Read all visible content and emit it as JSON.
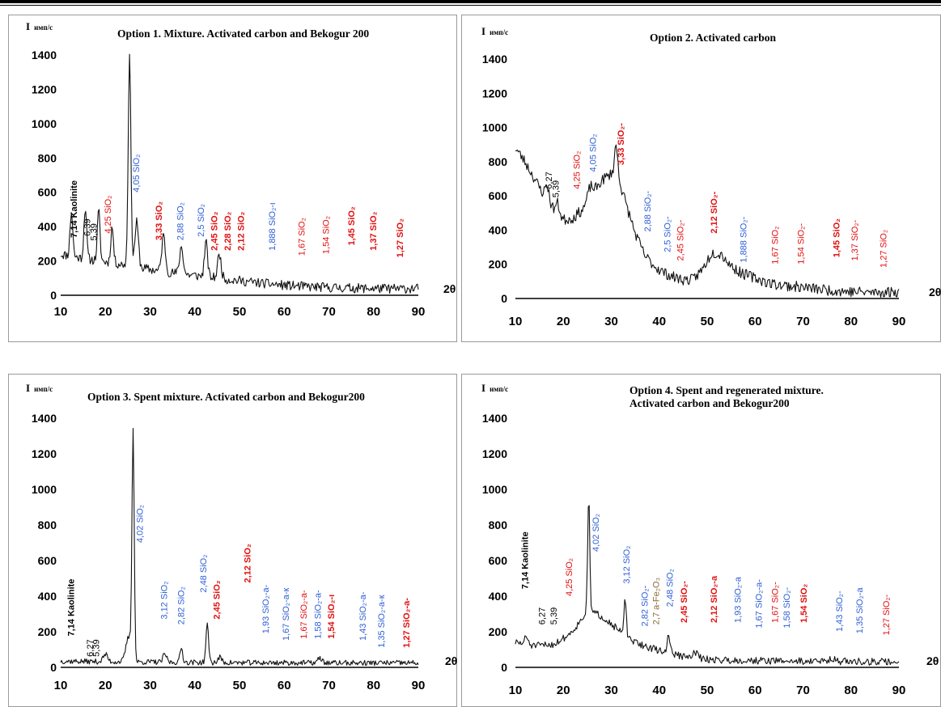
{
  "chart_data": [
    {
      "type": "line",
      "title": "Option 1. Mixture. Activated carbon and Bekogur 200",
      "ylabel": "I",
      "ylabel_sub": "имп/с",
      "xlabel": "2θ",
      "xlim": [
        10,
        90
      ],
      "ylim": [
        0,
        1400
      ],
      "x_ticks": [
        "10",
        "20",
        "30",
        "40",
        "50",
        "60",
        "70",
        "80",
        "90"
      ],
      "y_ticks": [
        "0",
        "200",
        "400",
        "600",
        "800",
        "1000",
        "1200",
        "1400"
      ],
      "base_curve": [
        [
          10,
          240
        ],
        [
          15,
          215
        ],
        [
          20,
          195
        ],
        [
          25,
          175
        ],
        [
          30,
          150
        ],
        [
          35,
          130
        ],
        [
          40,
          115
        ],
        [
          45,
          100
        ],
        [
          50,
          85
        ],
        [
          55,
          70
        ],
        [
          60,
          58
        ],
        [
          65,
          50
        ],
        [
          70,
          45
        ],
        [
          75,
          42
        ],
        [
          80,
          40
        ],
        [
          85,
          38
        ],
        [
          90,
          40
        ]
      ],
      "peaks": [
        [
          12.4,
          260,
          0.3
        ],
        [
          15.5,
          300,
          0.3
        ],
        [
          18.5,
          290,
          0.3
        ],
        [
          21.5,
          210,
          0.3
        ],
        [
          25.4,
          1220,
          0.3
        ],
        [
          27,
          260,
          0.4
        ],
        [
          33,
          210,
          0.4
        ],
        [
          37,
          160,
          0.4
        ],
        [
          42.5,
          200,
          0.35
        ],
        [
          45.5,
          140,
          0.4
        ]
      ],
      "noise": 28,
      "annotations": [
        {
          "text": "7,14 Kaolinite",
          "x": 13.6,
          "y": 335,
          "color": "#000000",
          "bold": true
        },
        {
          "text": "6,39",
          "x": 16.6,
          "y": 345,
          "color": "#000000",
          "bold": false
        },
        {
          "text": "5,39",
          "x": 18.1,
          "y": 318,
          "color": "#000000",
          "bold": false
        },
        {
          "text": "4,25 SiO₂",
          "x": 21.2,
          "y": 360,
          "color": "#e01010",
          "bold": false
        },
        {
          "text": "4,05 SiO₂",
          "x": 27.6,
          "y": 600,
          "color": "#2f5fd6",
          "bold": false
        },
        {
          "text": "3,33 SiO₂",
          "x": 32.6,
          "y": 320,
          "color": "#e01010",
          "bold": true
        },
        {
          "text": "2,88 SiO₂",
          "x": 37.4,
          "y": 320,
          "color": "#2f5fd6",
          "bold": false
        },
        {
          "text": "2,5 SiO₂",
          "x": 42.0,
          "y": 340,
          "color": "#2f5fd6",
          "bold": false
        },
        {
          "text": "2,45 SiO₂",
          "x": 45.0,
          "y": 260,
          "color": "#e01010",
          "bold": true
        },
        {
          "text": "2,28 SiO₂",
          "x": 48.0,
          "y": 260,
          "color": "#e01010",
          "bold": true
        },
        {
          "text": "2,12 SiO₂",
          "x": 51.0,
          "y": 260,
          "color": "#e01010",
          "bold": true
        },
        {
          "text": "1,888 SiO₂-ι",
          "x": 58.0,
          "y": 260,
          "color": "#2f5fd6",
          "bold": false
        },
        {
          "text": "1,67 SiO₂",
          "x": 64.6,
          "y": 230,
          "color": "#e01010",
          "bold": false
        },
        {
          "text": "1,54 SiO₂",
          "x": 70.0,
          "y": 240,
          "color": "#e01010",
          "bold": false
        },
        {
          "text": "1,45 SiO₂",
          "x": 75.7,
          "y": 290,
          "color": "#e01010",
          "bold": true
        },
        {
          "text": "1,37 SiO₂",
          "x": 80.6,
          "y": 260,
          "color": "#e01010",
          "bold": true
        },
        {
          "text": "1,27 SiO₂",
          "x": 86.6,
          "y": 220,
          "color": "#e01010",
          "bold": true
        }
      ]
    },
    {
      "type": "line",
      "title": "Option 2. Activated carbon",
      "ylabel": "I",
      "ylabel_sub": "имп/с",
      "xlabel": "2θ",
      "xlim": [
        10,
        90
      ],
      "ylim": [
        0,
        1400
      ],
      "x_ticks": [
        "10",
        "20",
        "30",
        "40",
        "50",
        "60",
        "70",
        "80",
        "90"
      ],
      "y_ticks": [
        "0",
        "200",
        "400",
        "600",
        "800",
        "1000",
        "1200",
        "1400"
      ],
      "base_curve": [
        [
          10,
          880
        ],
        [
          12,
          800
        ],
        [
          14,
          700
        ],
        [
          16,
          600
        ],
        [
          18,
          520
        ],
        [
          20,
          460
        ],
        [
          22,
          470
        ],
        [
          24,
          520
        ],
        [
          26,
          610
        ],
        [
          28,
          690
        ],
        [
          30,
          730
        ],
        [
          31.5,
          700
        ],
        [
          33,
          560
        ],
        [
          35,
          380
        ],
        [
          37,
          250
        ],
        [
          39,
          190
        ],
        [
          41,
          150
        ],
        [
          43,
          125
        ],
        [
          45,
          110
        ],
        [
          47,
          110
        ],
        [
          49,
          170
        ],
        [
          51,
          270
        ],
        [
          53,
          260
        ],
        [
          55,
          190
        ],
        [
          57,
          150
        ],
        [
          59,
          130
        ],
        [
          61,
          110
        ],
        [
          63,
          90
        ],
        [
          65,
          80
        ],
        [
          70,
          65
        ],
        [
          75,
          50
        ],
        [
          80,
          40
        ],
        [
          85,
          35
        ],
        [
          90,
          40
        ]
      ],
      "peaks": [
        [
          16.6,
          90,
          0.4
        ],
        [
          18.8,
          60,
          0.4
        ],
        [
          25.6,
          60,
          0.5
        ],
        [
          31.0,
          180,
          0.35
        ]
      ],
      "noise": 32,
      "annotations": [
        {
          "text": "6,27",
          "x": 17.6,
          "y": 640,
          "color": "#000000",
          "bold": false
        },
        {
          "text": "5,39",
          "x": 19.0,
          "y": 590,
          "color": "#000000",
          "bold": false
        },
        {
          "text": "4,25 SiO₂",
          "x": 23.4,
          "y": 640,
          "color": "#e01010",
          "bold": false
        },
        {
          "text": "4,05 SiO₂",
          "x": 26.8,
          "y": 740,
          "color": "#2f5fd6",
          "bold": false
        },
        {
          "text": "3,33 SiO₂-",
          "x": 32.6,
          "y": 780,
          "color": "#e01010",
          "bold": true
        },
        {
          "text": "2,88 SiO₂-",
          "x": 38.2,
          "y": 390,
          "color": "#2f5fd6",
          "bold": false
        },
        {
          "text": "2,5 SiO₂-",
          "x": 42.3,
          "y": 270,
          "color": "#2f5fd6",
          "bold": false
        },
        {
          "text": "2,45 SiO₂-",
          "x": 45.0,
          "y": 220,
          "color": "#e01010",
          "bold": false
        },
        {
          "text": "2,12 SiO₂-",
          "x": 52.0,
          "y": 380,
          "color": "#e01010",
          "bold": true
        },
        {
          "text": "1,888 SiO₂-",
          "x": 58.2,
          "y": 210,
          "color": "#2f5fd6",
          "bold": false
        },
        {
          "text": "1,67 SiO₂",
          "x": 64.8,
          "y": 200,
          "color": "#e01010",
          "bold": false
        },
        {
          "text": "1,54 SiO₂-",
          "x": 70.2,
          "y": 200,
          "color": "#e01010",
          "bold": false
        },
        {
          "text": "1,45 SiO₂",
          "x": 77.6,
          "y": 240,
          "color": "#e01010",
          "bold": true
        },
        {
          "text": "1,37 SiO₂-",
          "x": 81.4,
          "y": 220,
          "color": "#e01010",
          "bold": false
        },
        {
          "text": "1,27 SiO₂",
          "x": 87.4,
          "y": 180,
          "color": "#e01010",
          "bold": false
        }
      ]
    },
    {
      "type": "line",
      "title": "Option 3. Spent mixture. Activated carbon and Bekogur200",
      "ylabel": "I",
      "ylabel_sub": "имп/с",
      "xlabel": "2θ",
      "xlim": [
        10,
        90
      ],
      "ylim": [
        0,
        1400
      ],
      "x_ticks": [
        "10",
        "20",
        "30",
        "40",
        "50",
        "60",
        "70",
        "80",
        "90"
      ],
      "y_ticks": [
        "0",
        "200",
        "400",
        "600",
        "800",
        "1000",
        "1200",
        "1400"
      ],
      "base_curve": [
        [
          10,
          35
        ],
        [
          20,
          32
        ],
        [
          30,
          30
        ],
        [
          40,
          28
        ],
        [
          50,
          26
        ],
        [
          60,
          26
        ],
        [
          70,
          25
        ],
        [
          80,
          25
        ],
        [
          90,
          25
        ]
      ],
      "peaks": [
        [
          20.0,
          40,
          0.5
        ],
        [
          25.2,
          140,
          0.6
        ],
        [
          26.2,
          1280,
          0.25
        ],
        [
          33.3,
          45,
          0.4
        ],
        [
          37.0,
          80,
          0.3
        ],
        [
          42.8,
          210,
          0.3
        ],
        [
          45.6,
          30,
          0.4
        ],
        [
          68.0,
          25,
          0.5
        ]
      ],
      "noise": 15,
      "annotations": [
        {
          "text": "7,14 Kaolinite",
          "x": 13.0,
          "y": 175,
          "color": "#000000",
          "bold": true
        },
        {
          "text": "6,27",
          "x": 17.2,
          "y": 60,
          "color": "#000000",
          "bold": false
        },
        {
          "text": "5,39",
          "x": 18.6,
          "y": 60,
          "color": "#000000",
          "bold": false
        },
        {
          "text": "4,02 SiO₂",
          "x": 28.4,
          "y": 700,
          "color": "#2f5fd6",
          "bold": false
        },
        {
          "text": "3,12 SiO₂",
          "x": 33.8,
          "y": 270,
          "color": "#2f5fd6",
          "bold": false
        },
        {
          "text": "2,82 SiO₂",
          "x": 37.6,
          "y": 240,
          "color": "#2f5fd6",
          "bold": false
        },
        {
          "text": "2,48 SiO₂",
          "x": 42.6,
          "y": 420,
          "color": "#2f5fd6",
          "bold": false
        },
        {
          "text": "2,45 SiO₂",
          "x": 45.6,
          "y": 270,
          "color": "#e01010",
          "bold": true
        },
        {
          "text": "2,12 SiO₂",
          "x": 52.4,
          "y": 475,
          "color": "#e01010",
          "bold": true
        },
        {
          "text": "1,93 SiO₂-a-",
          "x": 56.5,
          "y": 190,
          "color": "#2f5fd6",
          "bold": false
        },
        {
          "text": "1,67 SiO₂-a-к",
          "x": 61.0,
          "y": 150,
          "color": "#2f5fd6",
          "bold": false
        },
        {
          "text": "1,67 SiO₂-a-",
          "x": 65.0,
          "y": 160,
          "color": "#e01010",
          "bold": false
        },
        {
          "text": "1,58 SiO₂-a-",
          "x": 68.2,
          "y": 160,
          "color": "#2f5fd6",
          "bold": false
        },
        {
          "text": "1,54 SiO₂-ι",
          "x": 71.2,
          "y": 160,
          "color": "#e01010",
          "bold": true
        },
        {
          "text": "1,43 SiO₂-a-",
          "x": 78.2,
          "y": 150,
          "color": "#2f5fd6",
          "bold": false
        },
        {
          "text": "1,35 SiO₂-a-к",
          "x": 82.4,
          "y": 110,
          "color": "#2f5fd6",
          "bold": false
        },
        {
          "text": "1,27 SiO₂-a-",
          "x": 88.0,
          "y": 110,
          "color": "#e01010",
          "bold": true
        }
      ]
    },
    {
      "type": "line",
      "title": "Option 4. Spent and regenerated mixture.",
      "subtitle": "Activated carbon and Bekogur200",
      "ylabel": "I",
      "ylabel_sub": "имп/с",
      "xlabel": "2θ",
      "xlim": [
        10,
        90
      ],
      "ylim": [
        0,
        1400
      ],
      "x_ticks": [
        "10",
        "20",
        "30",
        "40",
        "50",
        "60",
        "70",
        "80",
        "90"
      ],
      "y_ticks": [
        "0",
        "200",
        "400",
        "600",
        "800",
        "1000",
        "1200",
        "1400"
      ],
      "base_curve": [
        [
          10,
          140
        ],
        [
          14,
          120
        ],
        [
          18,
          130
        ],
        [
          21,
          180
        ],
        [
          23,
          240
        ],
        [
          25,
          320
        ],
        [
          27,
          300
        ],
        [
          29,
          270
        ],
        [
          31,
          220
        ],
        [
          34,
          150
        ],
        [
          38,
          110
        ],
        [
          42,
          80
        ],
        [
          46,
          55
        ],
        [
          50,
          45
        ],
        [
          55,
          40
        ],
        [
          60,
          38
        ],
        [
          70,
          35
        ],
        [
          80,
          33
        ],
        [
          90,
          30
        ]
      ],
      "peaks": [
        [
          12.3,
          40,
          0.4
        ],
        [
          25.3,
          640,
          0.22
        ],
        [
          32.9,
          200,
          0.25
        ],
        [
          42.0,
          100,
          0.3
        ],
        [
          47.6,
          35,
          0.5
        ],
        [
          76.0,
          20,
          0.5
        ]
      ],
      "noise": 20,
      "annotations": [
        {
          "text": "7,14 Kaolinite",
          "x": 12.6,
          "y": 440,
          "color": "#000000",
          "bold": true
        },
        {
          "text": "6,27",
          "x": 16.2,
          "y": 240,
          "color": "#000000",
          "bold": false
        },
        {
          "text": "5,39",
          "x": 18.6,
          "y": 240,
          "color": "#000000",
          "bold": false
        },
        {
          "text": "4,25 SiO₂",
          "x": 21.8,
          "y": 400,
          "color": "#e01010",
          "bold": false
        },
        {
          "text": "4,02 SiO₂",
          "x": 27.4,
          "y": 650,
          "color": "#2f5fd6",
          "bold": false
        },
        {
          "text": "3,12 SiO₂",
          "x": 33.8,
          "y": 470,
          "color": "#2f5fd6",
          "bold": false
        },
        {
          "text": "2,82 SiO₂-",
          "x": 37.6,
          "y": 230,
          "color": "#2f5fd6",
          "bold": false
        },
        {
          "text": "2,7 a-Fe₂O₃",
          "x": 40.0,
          "y": 240,
          "color": "#8a6a3a",
          "bold": false
        },
        {
          "text": "2,48 SiO₂",
          "x": 42.8,
          "y": 340,
          "color": "#2f5fd6",
          "bold": false
        },
        {
          "text": "2,45 SiO₂-",
          "x": 45.8,
          "y": 250,
          "color": "#e01010",
          "bold": true
        },
        {
          "text": "2,12 SiO₂-a",
          "x": 52.0,
          "y": 250,
          "color": "#e01010",
          "bold": true
        },
        {
          "text": "1,93 SiO₂-a",
          "x": 57.0,
          "y": 250,
          "color": "#2f5fd6",
          "bold": false
        },
        {
          "text": "1,67 SiO₂-a-",
          "x": 61.4,
          "y": 220,
          "color": "#2f5fd6",
          "bold": false
        },
        {
          "text": "1,67 SiO₂-",
          "x": 64.8,
          "y": 250,
          "color": "#e01010",
          "bold": false
        },
        {
          "text": "1,58 SiO₂-",
          "x": 67.2,
          "y": 220,
          "color": "#2f5fd6",
          "bold": false
        },
        {
          "text": "1,54 SiO₂",
          "x": 70.8,
          "y": 250,
          "color": "#e01010",
          "bold": true
        },
        {
          "text": "1,43 SiO₂-",
          "x": 78.2,
          "y": 200,
          "color": "#2f5fd6",
          "bold": false
        },
        {
          "text": "1,35 SiO₂-a",
          "x": 82.4,
          "y": 190,
          "color": "#2f5fd6",
          "bold": false
        },
        {
          "text": "1,27 SiO₂-",
          "x": 88.0,
          "y": 180,
          "color": "#e01010",
          "bold": false
        }
      ]
    }
  ]
}
